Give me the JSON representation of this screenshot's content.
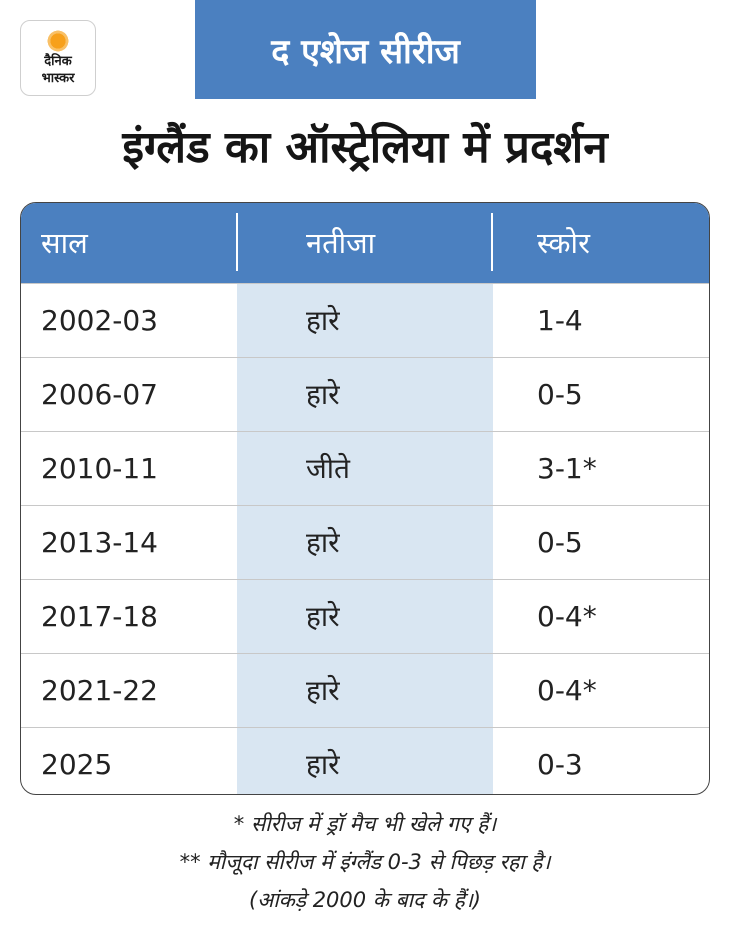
{
  "logo": {
    "line1": "दैनिक",
    "line2": "भास्कर"
  },
  "banner": {
    "text": "द एशेज सीरीज"
  },
  "headline": "इंग्लैंड का ऑस्ट्रेलिया में प्रदर्शन",
  "chart_data": {
    "type": "table",
    "title": "इंग्लैंड का ऑस्ट्रेलिया में प्रदर्शन",
    "columns": [
      "साल",
      "नतीजा",
      "स्कोर"
    ],
    "rows": [
      [
        "2002-03",
        "हारे",
        "1-4"
      ],
      [
        "2006-07",
        "हारे",
        "0-5"
      ],
      [
        "2010-11",
        "जीते",
        "3-1*"
      ],
      [
        "2013-14",
        "हारे",
        "0-5"
      ],
      [
        "2017-18",
        "हारे",
        "0-4*"
      ],
      [
        "2021-22",
        "हारे",
        "0-4*"
      ],
      [
        "2025",
        "हारे",
        "0-3"
      ]
    ]
  },
  "colors": {
    "accent": "#4b80c0",
    "shade": "#d9e6f2"
  },
  "footnotes": [
    "* सीरीज में ड्रॉ मैच भी खेले गए हैं।",
    "** मौजूदा सीरीज में इंग्लैंड 0-3 से पिछड़ रहा है।",
    "(आंकड़े 2000 के बाद के हैं।)"
  ]
}
